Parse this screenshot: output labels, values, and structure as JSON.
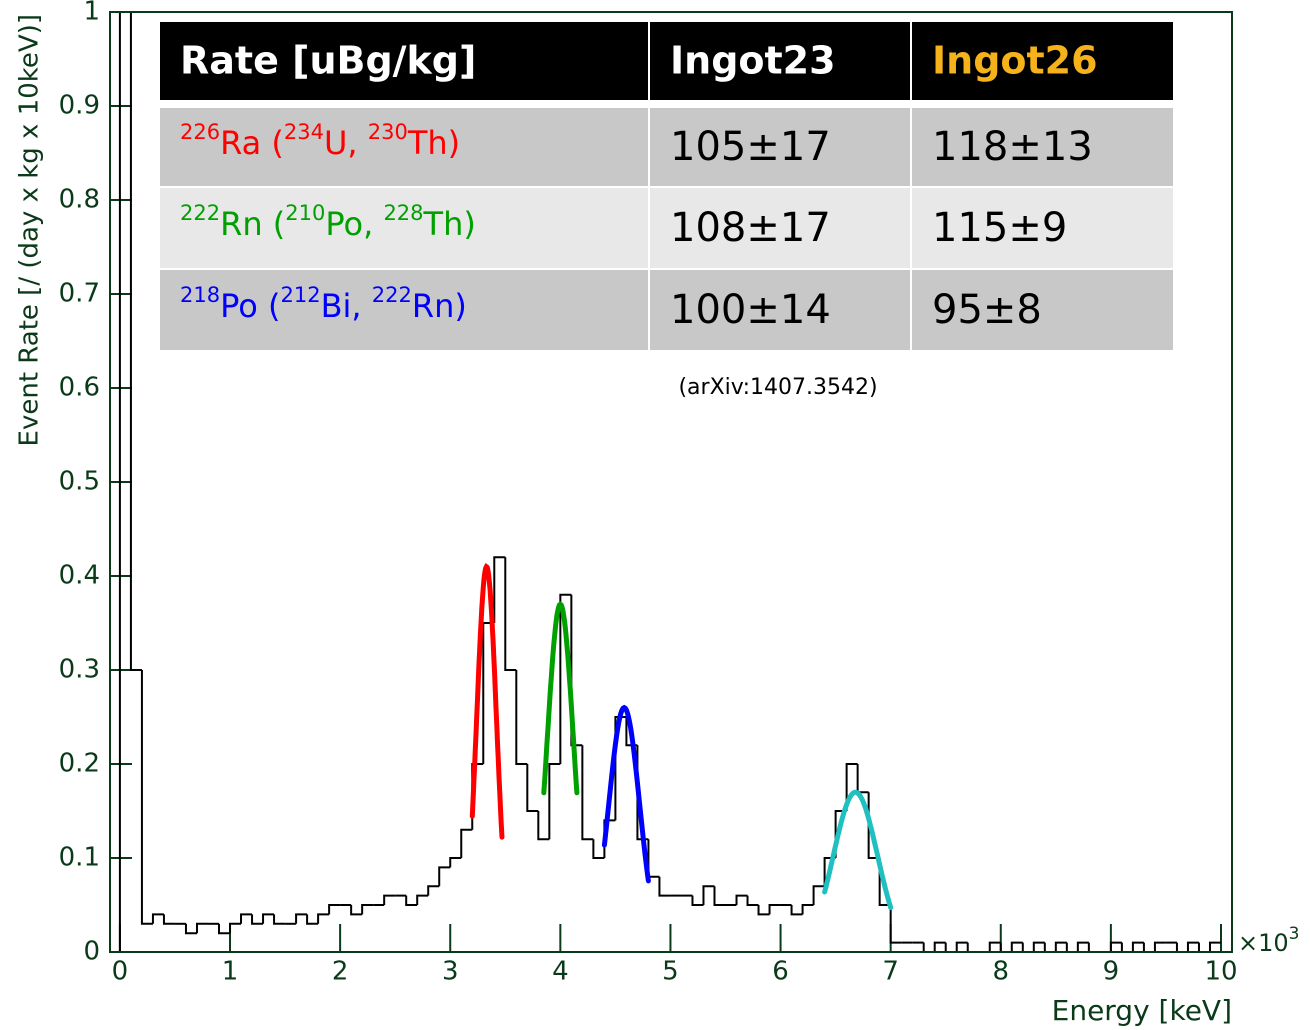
{
  "chart_data": {
    "type": "histogram",
    "xlabel": "Energy [keV]",
    "ylabel": "Event Rate [/ (day x kg x 10keV)]",
    "x_multiplier": {
      "base": "×10",
      "exponent": "3"
    },
    "xlim": [
      -0.09,
      10.1
    ],
    "ylim": [
      0,
      1
    ],
    "xticks": [
      0,
      1,
      2,
      3,
      4,
      5,
      6,
      7,
      8,
      9,
      10
    ],
    "yticks": [
      0,
      0.1,
      0.2,
      0.3,
      0.4,
      0.5,
      0.6,
      0.7,
      0.8,
      0.9,
      1
    ],
    "color": "#000000",
    "bins": [
      0,
      0.1,
      0.2,
      0.3,
      0.4,
      0.5,
      0.6,
      0.7,
      0.8,
      0.9,
      1,
      1.1,
      1.2,
      1.3,
      1.4,
      1.5,
      1.6,
      1.7,
      1.8,
      1.9,
      2,
      2.1,
      2.2,
      2.3,
      2.4,
      2.5,
      2.6,
      2.7,
      2.8,
      2.9,
      3,
      3.1,
      3.2,
      3.3,
      3.4,
      3.5,
      3.6,
      3.7,
      3.8,
      3.9,
      4,
      4.1,
      4.2,
      4.3,
      4.4,
      4.5,
      4.6,
      4.7,
      4.8,
      4.9,
      5,
      5.1,
      5.2,
      5.3,
      5.4,
      5.5,
      5.6,
      5.7,
      5.8,
      5.9,
      6,
      6.1,
      6.2,
      6.3,
      6.4,
      6.5,
      6.6,
      6.7,
      6.8,
      6.9,
      7,
      7.1,
      7.2,
      7.3,
      7.4,
      7.5,
      7.6,
      7.7,
      7.8,
      7.9,
      8,
      8.1,
      8.2,
      8.3,
      8.4,
      8.5,
      8.6,
      8.7,
      8.8,
      8.9,
      9,
      9.1,
      9.2,
      9.3,
      9.4,
      9.5,
      9.6,
      9.7,
      9.8,
      9.9,
      10
    ],
    "values": [
      1.0,
      0.3,
      0.03,
      0.04,
      0.03,
      0.03,
      0.02,
      0.03,
      0.03,
      0.02,
      0.03,
      0.04,
      0.03,
      0.04,
      0.03,
      0.03,
      0.04,
      0.03,
      0.04,
      0.05,
      0.05,
      0.04,
      0.05,
      0.05,
      0.06,
      0.06,
      0.05,
      0.06,
      0.07,
      0.09,
      0.1,
      0.13,
      0.2,
      0.35,
      0.42,
      0.3,
      0.2,
      0.15,
      0.12,
      0.2,
      0.38,
      0.22,
      0.12,
      0.1,
      0.14,
      0.25,
      0.22,
      0.12,
      0.08,
      0.06,
      0.06,
      0.06,
      0.05,
      0.07,
      0.05,
      0.05,
      0.06,
      0.05,
      0.04,
      0.05,
      0.05,
      0.04,
      0.05,
      0.07,
      0.1,
      0.15,
      0.2,
      0.17,
      0.1,
      0.05,
      0.01,
      0.01,
      0.01,
      0,
      0.01,
      0,
      0.01,
      0,
      0,
      0.01,
      0,
      0.01,
      0,
      0.01,
      0,
      0.01,
      0,
      0.01,
      0,
      0,
      0.01,
      0,
      0.01,
      0,
      0.01,
      0.01,
      0,
      0.01,
      0,
      0.01
    ],
    "fits": [
      {
        "color": "#ff0000",
        "amplitude": 0.41,
        "mean": 3.33,
        "sigma": 0.09,
        "range": [
          3.2,
          3.47
        ]
      },
      {
        "color": "#00a000",
        "amplitude": 0.37,
        "mean": 4.0,
        "sigma": 0.12,
        "range": [
          3.85,
          4.15
        ]
      },
      {
        "color": "#0000ff",
        "amplitude": 0.26,
        "mean": 4.58,
        "sigma": 0.14,
        "range": [
          4.4,
          4.8
        ]
      },
      {
        "color": "#20c0c0",
        "amplitude": 0.17,
        "mean": 6.68,
        "sigma": 0.2,
        "range": [
          6.4,
          7.0
        ]
      }
    ],
    "table": {
      "header": [
        {
          "text": "Rate [uBg/kg]",
          "color": "#ffffff"
        },
        {
          "text": "Ingot23",
          "color": "#ffffff"
        },
        {
          "text": "Ingot26",
          "color": "#f5b21b"
        }
      ],
      "rows": [
        {
          "color": "#ff0000",
          "label": [
            {
              "sup": "226"
            },
            {
              "text": "Ra ("
            },
            {
              "sup": "234"
            },
            {
              "text": "U, "
            },
            {
              "sup": "230"
            },
            {
              "text": "Th)"
            }
          ],
          "cells": [
            "105±17",
            "118±13"
          ]
        },
        {
          "color": "#00a000",
          "label": [
            {
              "sup": "222"
            },
            {
              "text": "Rn ("
            },
            {
              "sup": "210"
            },
            {
              "text": "Po, "
            },
            {
              "sup": "228"
            },
            {
              "text": "Th)"
            }
          ],
          "cells": [
            "108±17",
            "115±9"
          ]
        },
        {
          "color": "#0000ff",
          "label": [
            {
              "sup": "218"
            },
            {
              "text": "Po ("
            },
            {
              "sup": "212"
            },
            {
              "text": "Bi, "
            },
            {
              "sup": "222"
            },
            {
              "text": "Rn)"
            }
          ],
          "cells": [
            "100±14",
            "95±8"
          ]
        }
      ],
      "note": "(arXiv:1407.3542)"
    }
  }
}
